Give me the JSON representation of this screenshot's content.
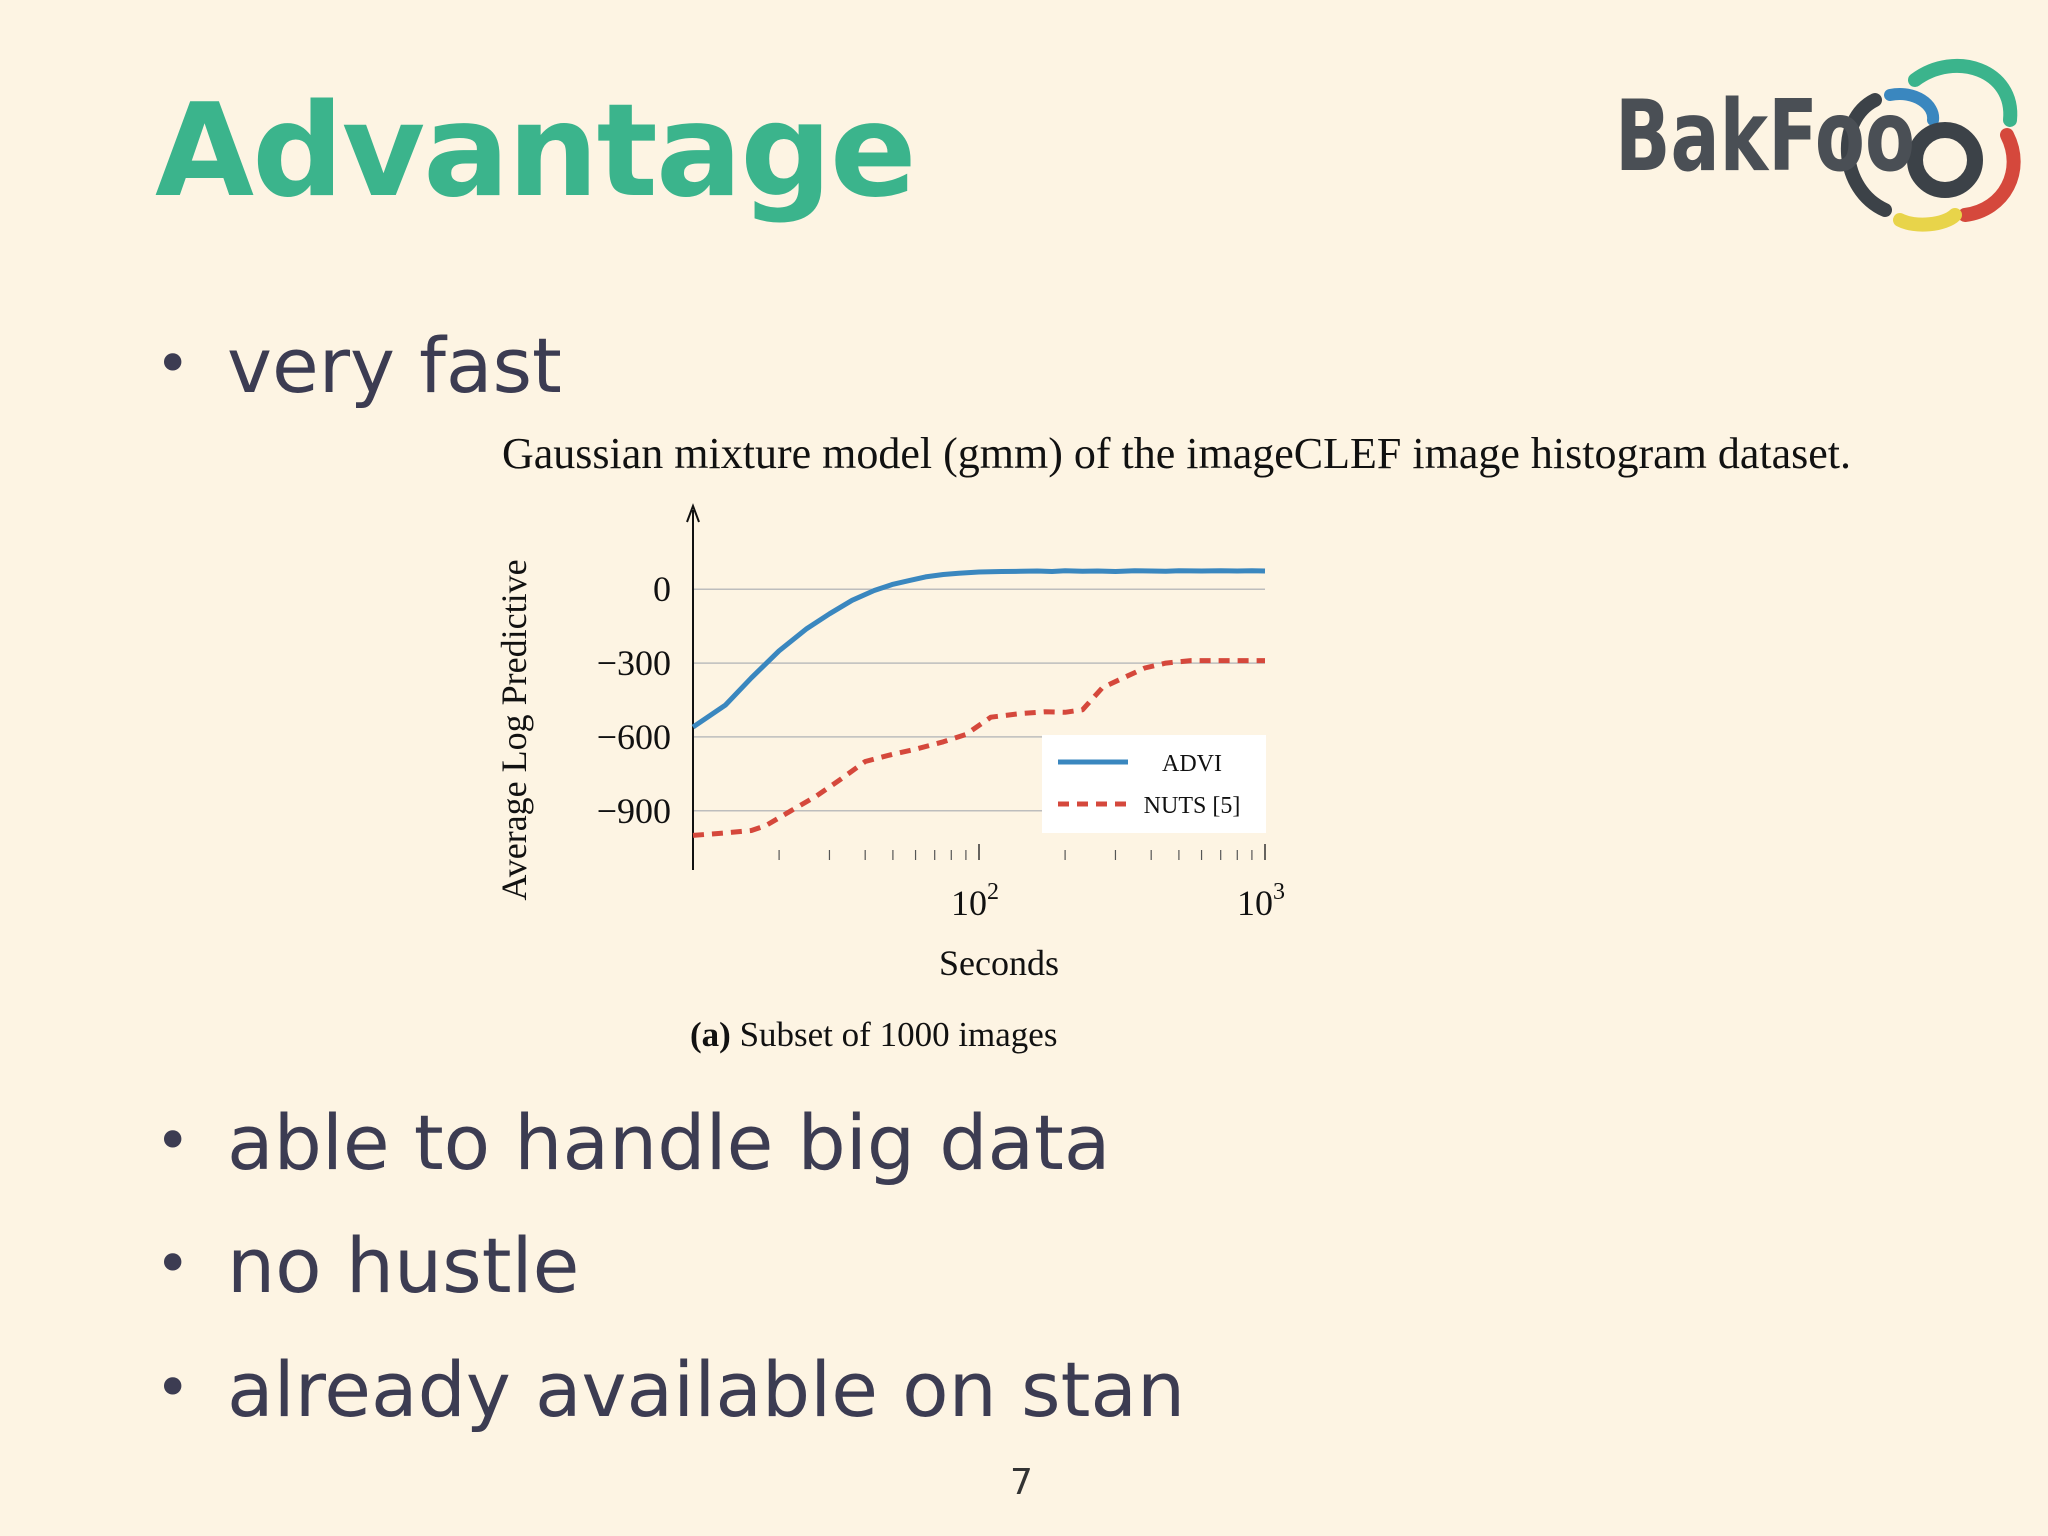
{
  "slide": {
    "title": "Advantage",
    "page_number": "7",
    "logo_text": "BakFoo",
    "bullets": [
      "very fast",
      "able to handle big data",
      "no hustle",
      "already available on stan"
    ]
  },
  "figure": {
    "caption": "Gaussian mixture model (gmm) of the imageCLEF image histogram dataset.",
    "subcaption_label": "(a)",
    "subcaption_text": " Subset of 1000 images"
  },
  "chart_data": {
    "type": "line",
    "xlabel": "Seconds",
    "ylabel": "Average Log Predictive",
    "x_scale": "log",
    "xlim": [
      10,
      1000
    ],
    "ylim": [
      -1100,
      200
    ],
    "x_ticks": [
      {
        "value": 100,
        "base": "10",
        "exp": "2"
      },
      {
        "value": 1000,
        "base": "10",
        "exp": "3"
      }
    ],
    "y_ticks": [
      {
        "value": 0,
        "label": "0"
      },
      {
        "value": -300,
        "label": "−300"
      },
      {
        "value": -600,
        "label": "−600"
      },
      {
        "value": -900,
        "label": "−900"
      }
    ],
    "grid": "horizontal",
    "legend_position": "bottom-right",
    "series": [
      {
        "name": "ADVI",
        "color": "#3a87bf",
        "style": "solid",
        "x": [
          10,
          13,
          16,
          20,
          25,
          30,
          36,
          43,
          50,
          57,
          65,
          75,
          85,
          100,
          120,
          140,
          160,
          180,
          200,
          230,
          260,
          300,
          350,
          400,
          450,
          500,
          600,
          700,
          800,
          900,
          1000
        ],
        "y": [
          -560,
          -470,
          -360,
          -250,
          -160,
          -100,
          -45,
          -5,
          20,
          35,
          50,
          60,
          65,
          70,
          72,
          73,
          74,
          72,
          75,
          73,
          74,
          72,
          75,
          74,
          73,
          75,
          74,
          75,
          74,
          75,
          74
        ]
      },
      {
        "name": "NUTS [5]",
        "color": "#d5483c",
        "style": "dashed",
        "x": [
          10,
          13,
          16,
          18,
          22,
          27,
          33,
          40,
          50,
          60,
          75,
          90,
          110,
          140,
          170,
          200,
          230,
          270,
          320,
          380,
          450,
          550,
          700,
          850,
          1000
        ],
        "y": [
          -1000,
          -990,
          -980,
          -960,
          -900,
          -840,
          -770,
          -700,
          -670,
          -650,
          -620,
          -590,
          -520,
          -505,
          -498,
          -500,
          -490,
          -400,
          -360,
          -320,
          -300,
          -290,
          -290,
          -290,
          -290
        ]
      }
    ]
  }
}
